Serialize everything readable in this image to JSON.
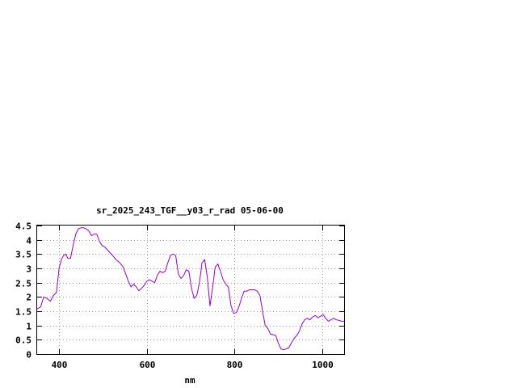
{
  "chart_data": {
    "type": "line",
    "title": "sr_2025_243_TGF__y03_r_rad 05-06-00",
    "xlabel": "nm",
    "ylabel": "",
    "xlim": [
      350,
      1050
    ],
    "ylim": [
      0,
      4.5
    ],
    "xticks": [
      400,
      600,
      800,
      1000
    ],
    "yticks": [
      0,
      0.5,
      1,
      1.5,
      2,
      2.5,
      3,
      3.5,
      4,
      4.5
    ],
    "ytick_labels": [
      "0",
      "0.5",
      "1",
      "1.5",
      "2",
      "2.5",
      "3",
      "3.5",
      "4",
      "4.5"
    ],
    "grid": true,
    "legend": "none",
    "series": [
      {
        "color": "#9400d3",
        "x": [
          350,
          358,
          365,
          372,
          380,
          387,
          394,
          400,
          405,
          410,
          415,
          420,
          426,
          432,
          438,
          444,
          450,
          456,
          462,
          468,
          474,
          480,
          486,
          492,
          498,
          504,
          510,
          516,
          522,
          530,
          538,
          546,
          552,
          558,
          564,
          570,
          576,
          582,
          588,
          594,
          600,
          606,
          612,
          618,
          624,
          630,
          636,
          642,
          648,
          654,
          660,
          666,
          672,
          678,
          684,
          690,
          696,
          702,
          708,
          714,
          720,
          726,
          732,
          738,
          744,
          750,
          756,
          762,
          768,
          774,
          780,
          786,
          792,
          798,
          804,
          810,
          816,
          822,
          828,
          834,
          840,
          846,
          852,
          858,
          864,
          870,
          876,
          882,
          888,
          894,
          900,
          906,
          912,
          918,
          924,
          930,
          936,
          942,
          948,
          954,
          960,
          966,
          972,
          978,
          984,
          990,
          996,
          1002,
          1008,
          1014,
          1020,
          1026,
          1032,
          1038,
          1044,
          1050
        ],
        "y": [
          1.58,
          1.65,
          2.0,
          1.95,
          1.85,
          2.05,
          2.15,
          3.0,
          3.3,
          3.45,
          3.5,
          3.35,
          3.35,
          3.8,
          4.2,
          4.38,
          4.42,
          4.42,
          4.38,
          4.3,
          4.15,
          4.2,
          4.2,
          3.95,
          3.8,
          3.75,
          3.65,
          3.55,
          3.45,
          3.3,
          3.2,
          3.05,
          2.8,
          2.55,
          2.35,
          2.45,
          2.35,
          2.22,
          2.3,
          2.4,
          2.55,
          2.6,
          2.55,
          2.5,
          2.75,
          2.9,
          2.85,
          2.9,
          3.2,
          3.45,
          3.5,
          3.45,
          2.8,
          2.65,
          2.75,
          2.95,
          2.9,
          2.3,
          1.95,
          2.05,
          2.5,
          3.2,
          3.3,
          2.7,
          1.68,
          2.3,
          3.05,
          3.15,
          2.9,
          2.6,
          2.45,
          2.35,
          1.7,
          1.42,
          1.45,
          1.65,
          1.95,
          2.2,
          2.2,
          2.25,
          2.25,
          2.25,
          2.2,
          2.05,
          1.5,
          1.0,
          0.9,
          0.7,
          0.68,
          0.65,
          0.38,
          0.18,
          0.15,
          0.18,
          0.22,
          0.4,
          0.55,
          0.65,
          0.8,
          1.05,
          1.2,
          1.25,
          1.2,
          1.3,
          1.35,
          1.28,
          1.32,
          1.38,
          1.25,
          1.15,
          1.2,
          1.25,
          1.2,
          1.18,
          1.15,
          1.15
        ]
      }
    ]
  }
}
